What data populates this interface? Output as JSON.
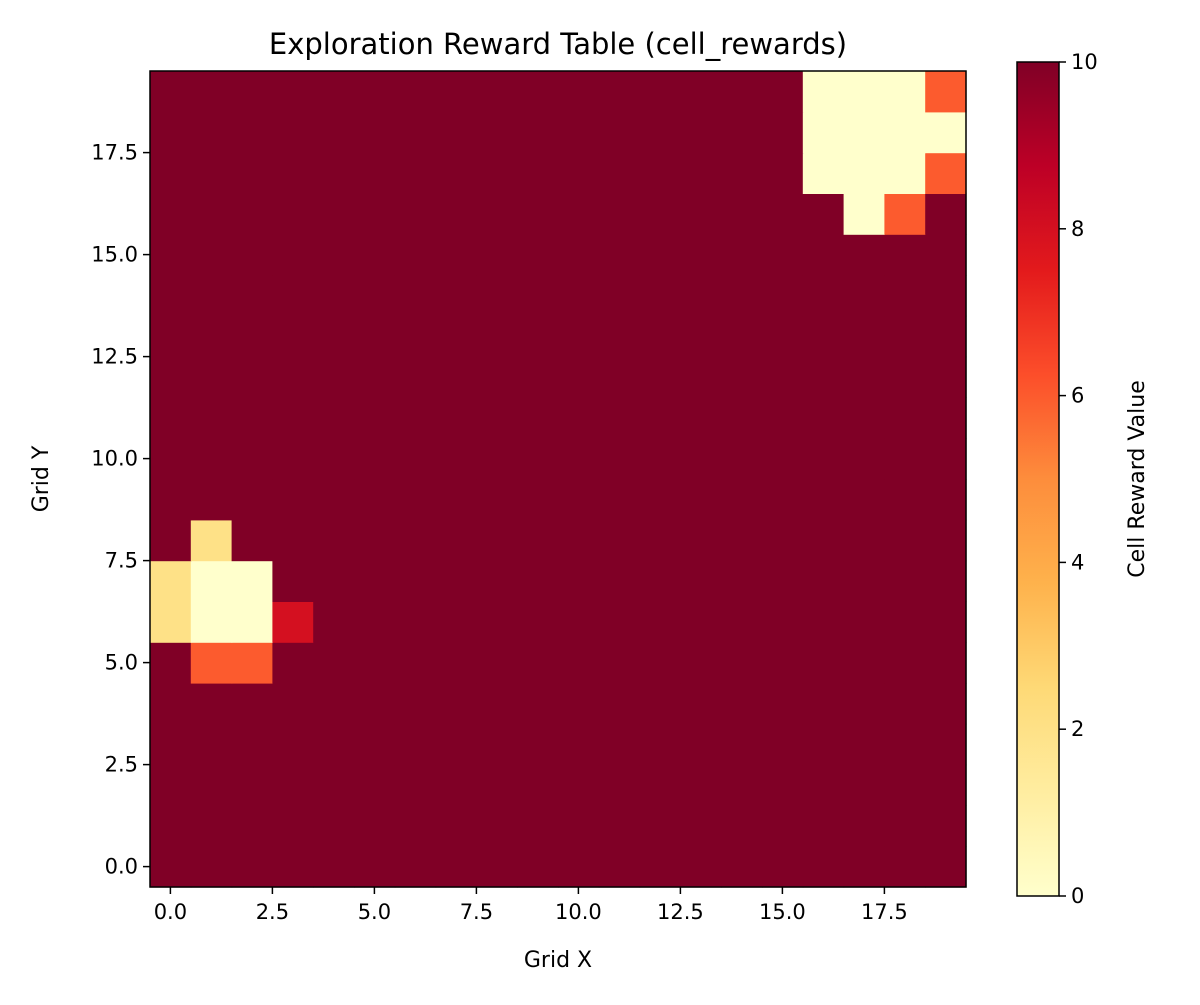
{
  "chart_data": {
    "type": "heatmap",
    "title": "Exploration Reward Table (cell_rewards)",
    "xlabel": "Grid X",
    "ylabel": "Grid Y",
    "colorbar_label": "Cell Reward Value",
    "colormap": "YlOrRd",
    "grid_size": [
      20,
      20
    ],
    "xlim": [
      -0.5,
      19.5
    ],
    "ylim": [
      -0.5,
      19.5
    ],
    "clim": [
      0,
      10
    ],
    "x_ticks": [
      "0.0",
      "2.5",
      "5.0",
      "7.5",
      "10.0",
      "12.5",
      "15.0",
      "17.5"
    ],
    "y_ticks": [
      "0.0",
      "2.5",
      "5.0",
      "7.5",
      "10.0",
      "12.5",
      "15.0",
      "17.5"
    ],
    "colorbar_ticks": [
      "0",
      "2",
      "4",
      "6",
      "8",
      "10"
    ],
    "grid": false,
    "default_value": 10,
    "cells": [
      {
        "x": 0,
        "y": 6,
        "value": 2
      },
      {
        "x": 0,
        "y": 7,
        "value": 2
      },
      {
        "x": 1,
        "y": 8,
        "value": 2
      },
      {
        "x": 1,
        "y": 7,
        "value": 0
      },
      {
        "x": 2,
        "y": 7,
        "value": 0
      },
      {
        "x": 1,
        "y": 6,
        "value": 0
      },
      {
        "x": 2,
        "y": 6,
        "value": 0
      },
      {
        "x": 3,
        "y": 6,
        "value": 8
      },
      {
        "x": 1,
        "y": 5,
        "value": 6
      },
      {
        "x": 2,
        "y": 5,
        "value": 6
      },
      {
        "x": 16,
        "y": 19,
        "value": 0
      },
      {
        "x": 17,
        "y": 19,
        "value": 0
      },
      {
        "x": 18,
        "y": 19,
        "value": 0
      },
      {
        "x": 19,
        "y": 19,
        "value": 6
      },
      {
        "x": 16,
        "y": 18,
        "value": 0
      },
      {
        "x": 17,
        "y": 18,
        "value": 0
      },
      {
        "x": 18,
        "y": 18,
        "value": 0
      },
      {
        "x": 19,
        "y": 18,
        "value": 0
      },
      {
        "x": 16,
        "y": 17,
        "value": 0
      },
      {
        "x": 17,
        "y": 17,
        "value": 0
      },
      {
        "x": 18,
        "y": 17,
        "value": 0
      },
      {
        "x": 19,
        "y": 17,
        "value": 6
      },
      {
        "x": 17,
        "y": 16,
        "value": 0
      },
      {
        "x": 18,
        "y": 16,
        "value": 6
      }
    ]
  }
}
